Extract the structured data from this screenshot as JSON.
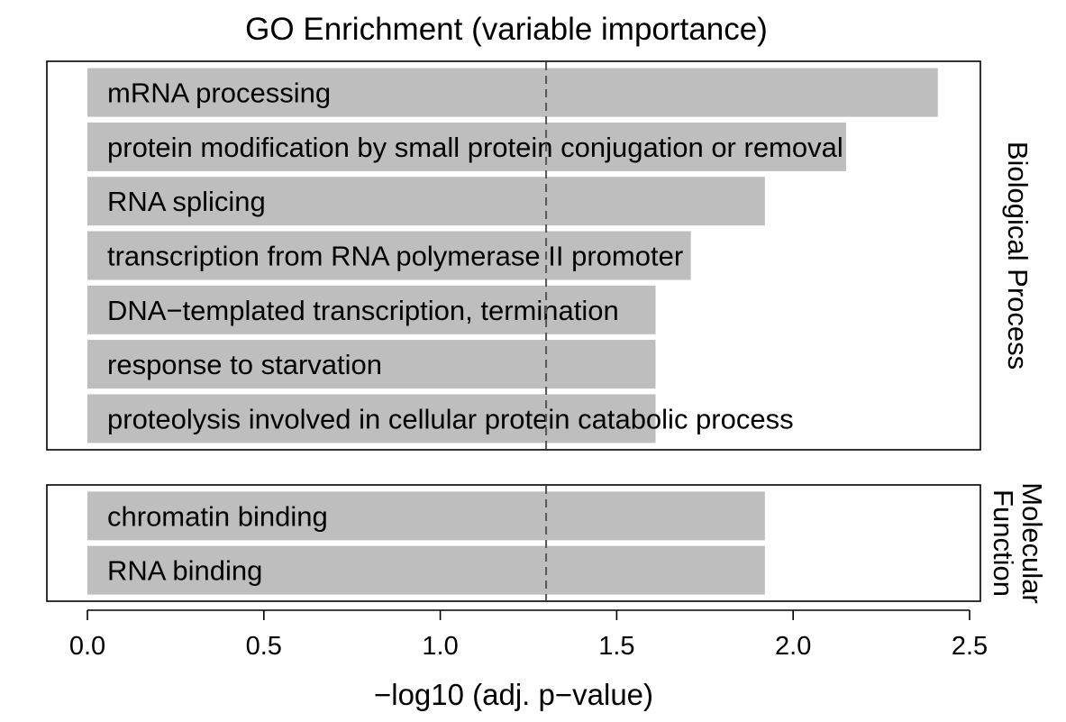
{
  "chart_data": {
    "type": "bar",
    "orientation": "horizontal",
    "title": "GO Enrichment (variable importance)",
    "xlabel": "−log10 (adj. p−value)",
    "xlim": [
      0,
      2.5
    ],
    "xticks": [
      0.0,
      0.5,
      1.0,
      1.5,
      2.0,
      2.5
    ],
    "xtick_labels": [
      "0.0",
      "0.5",
      "1.0",
      "1.5",
      "2.0",
      "2.5"
    ],
    "threshold": 1.3,
    "threshold_style": "dashed",
    "bar_color": "#bebebe",
    "grid": false,
    "panels": [
      {
        "facet_label": "Biological Process",
        "categories": [
          "mRNA processing",
          "protein modification by small protein conjugation or removal",
          "RNA splicing",
          "transcription from RNA polymerase II promoter",
          "DNA−templated transcription, termination",
          "response to starvation",
          "proteolysis involved in cellular protein catabolic process"
        ],
        "values": [
          2.41,
          2.15,
          1.92,
          1.71,
          1.61,
          1.61,
          1.61
        ]
      },
      {
        "facet_label": "Molecular Function",
        "facet_label_lines": [
          "Molecular",
          "Function"
        ],
        "categories": [
          "chromatin binding",
          "RNA binding"
        ],
        "values": [
          1.92,
          1.92
        ]
      }
    ]
  }
}
